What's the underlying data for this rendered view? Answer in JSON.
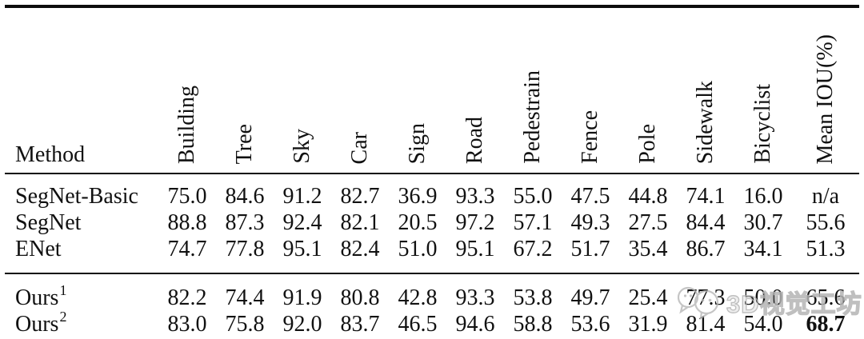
{
  "table": {
    "method_header": "Method",
    "columns": [
      "Building",
      "Tree",
      "Sky",
      "Car",
      "Sign",
      "Road",
      "Pedestrain",
      "Fence",
      "Pole",
      "Sidewalk",
      "Bicyclist",
      "Mean IOU(%)"
    ],
    "rows": [
      {
        "method": "SegNet-Basic",
        "sup": "",
        "group": "baselines",
        "bold_mean": false,
        "values": [
          "75.0",
          "84.6",
          "91.2",
          "82.7",
          "36.9",
          "93.3",
          "55.0",
          "47.5",
          "44.8",
          "74.1",
          "16.0",
          "n/a"
        ]
      },
      {
        "method": "SegNet",
        "sup": "",
        "group": "baselines",
        "bold_mean": false,
        "values": [
          "88.8",
          "87.3",
          "92.4",
          "82.1",
          "20.5",
          "97.2",
          "57.1",
          "49.3",
          "27.5",
          "84.4",
          "30.7",
          "55.6"
        ]
      },
      {
        "method": "ENet",
        "sup": "",
        "group": "baselines",
        "bold_mean": false,
        "values": [
          "74.7",
          "77.8",
          "95.1",
          "82.4",
          "51.0",
          "95.1",
          "67.2",
          "51.7",
          "35.4",
          "86.7",
          "34.1",
          "51.3"
        ]
      },
      {
        "method": "Ours",
        "sup": "1",
        "group": "ours",
        "bold_mean": false,
        "values": [
          "82.2",
          "74.4",
          "91.9",
          "80.8",
          "42.8",
          "93.3",
          "53.8",
          "49.7",
          "25.4",
          "77.3",
          "50.0",
          "65.6"
        ]
      },
      {
        "method": "Ours",
        "sup": "2",
        "group": "ours",
        "bold_mean": true,
        "values": [
          "83.0",
          "75.8",
          "92.0",
          "83.7",
          "46.5",
          "94.6",
          "58.8",
          "53.6",
          "31.9",
          "81.4",
          "54.0",
          "68.7"
        ]
      }
    ]
  },
  "watermark": {
    "text": "3D视觉工坊",
    "color": "#b4b4b4"
  },
  "colors": {
    "rule": "#0d0d0d",
    "background": "#ffffff",
    "text": "#111111"
  }
}
